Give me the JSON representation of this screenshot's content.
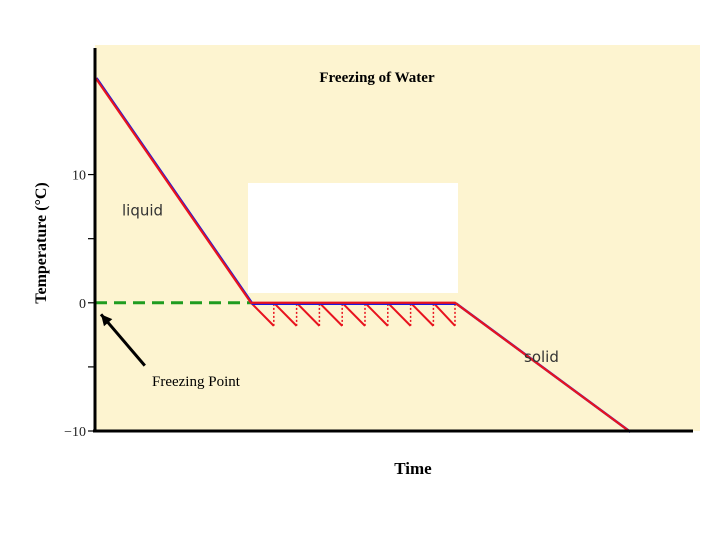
{
  "chart_data": {
    "type": "line",
    "title": "Freezing of Water",
    "xlabel": "Time",
    "ylabel": "Temperature (°C)",
    "ylim": [
      -10,
      18
    ],
    "xlim": [
      0,
      100
    ],
    "yticks": [
      {
        "value": 10,
        "label": "10"
      },
      {
        "value": 5,
        "label": ""
      },
      {
        "value": 0,
        "label": "0"
      },
      {
        "value": -5,
        "label": ""
      },
      {
        "value": -10,
        "label": "−10"
      }
    ],
    "grid": false,
    "series": [
      {
        "x": [
          0,
          26,
          60,
          89
        ],
        "y": [
          17.6,
          0,
          0,
          -10
        ]
      }
    ],
    "supercooling_teeth": [
      {
        "x0": 26.0,
        "x1": 29.8
      },
      {
        "x0": 29.8,
        "x1": 33.6
      },
      {
        "x0": 33.6,
        "x1": 37.4
      },
      {
        "x0": 37.4,
        "x1": 41.2
      },
      {
        "x0": 41.2,
        "x1": 45.0
      },
      {
        "x0": 45.0,
        "x1": 48.8
      },
      {
        "x0": 48.8,
        "x1": 52.6
      },
      {
        "x0": 52.6,
        "x1": 56.4
      },
      {
        "x0": 56.4,
        "x1": 60.0
      }
    ],
    "tooth_depth": -1.8,
    "freezing_point_line": {
      "y": 0,
      "x_from": 0,
      "x_to": 26
    },
    "annotations": [
      {
        "text": "liquid",
        "x": 4.5,
        "y": 6.8
      },
      {
        "text": "solid",
        "x": 71.5,
        "y": -4.6
      },
      {
        "text": "Freezing Point",
        "x": 9.5,
        "y": -6.5
      }
    ],
    "arrow": {
      "from_x": 8.3,
      "from_y": -4.9,
      "to_x": 1.0,
      "to_y": -0.9
    }
  },
  "colors": {
    "plot_bg": "#FDF4D0",
    "line_red": "#E8131E",
    "line_blue": "#1A1AE0",
    "freezing_dash": "#1F9C1F",
    "axis": "#000000"
  }
}
